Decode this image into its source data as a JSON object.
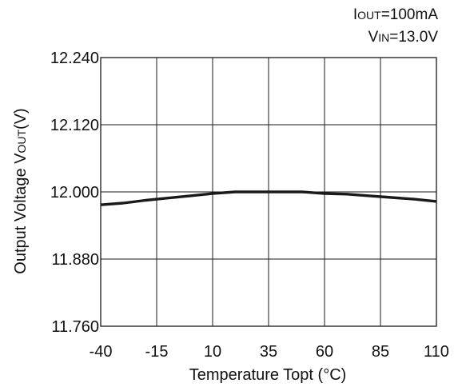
{
  "chart_data": {
    "type": "line",
    "title": "",
    "conditions": [
      {
        "main": "I",
        "sub": "OUT",
        "rest": "=100mA"
      },
      {
        "main": "V",
        "sub": "IN",
        "rest": "=13.0V"
      }
    ],
    "xlabel": "Temperature Topt (°C)",
    "ylabel": {
      "main": "Output Voltage V",
      "sub": "OUT",
      "rest": "(V)"
    },
    "xlim": [
      -40,
      110
    ],
    "ylim": [
      11.76,
      12.24
    ],
    "xticks": [
      "-40",
      "-15",
      "10",
      "35",
      "60",
      "85",
      "110"
    ],
    "yticks": [
      "12.240",
      "12.120",
      "12.000",
      "11.880",
      "11.760"
    ],
    "grid": true,
    "series": [
      {
        "name": "",
        "color": "#1a1a1a",
        "x": [
          -40,
          -30,
          -20,
          -10,
          0,
          10,
          20,
          30,
          40,
          50,
          60,
          70,
          80,
          90,
          100,
          110
        ],
        "y": [
          11.977,
          11.98,
          11.985,
          11.989,
          11.993,
          11.997,
          12.0,
          12.0,
          12.0,
          12.0,
          11.997,
          11.996,
          11.993,
          11.99,
          11.987,
          11.983
        ]
      }
    ]
  }
}
